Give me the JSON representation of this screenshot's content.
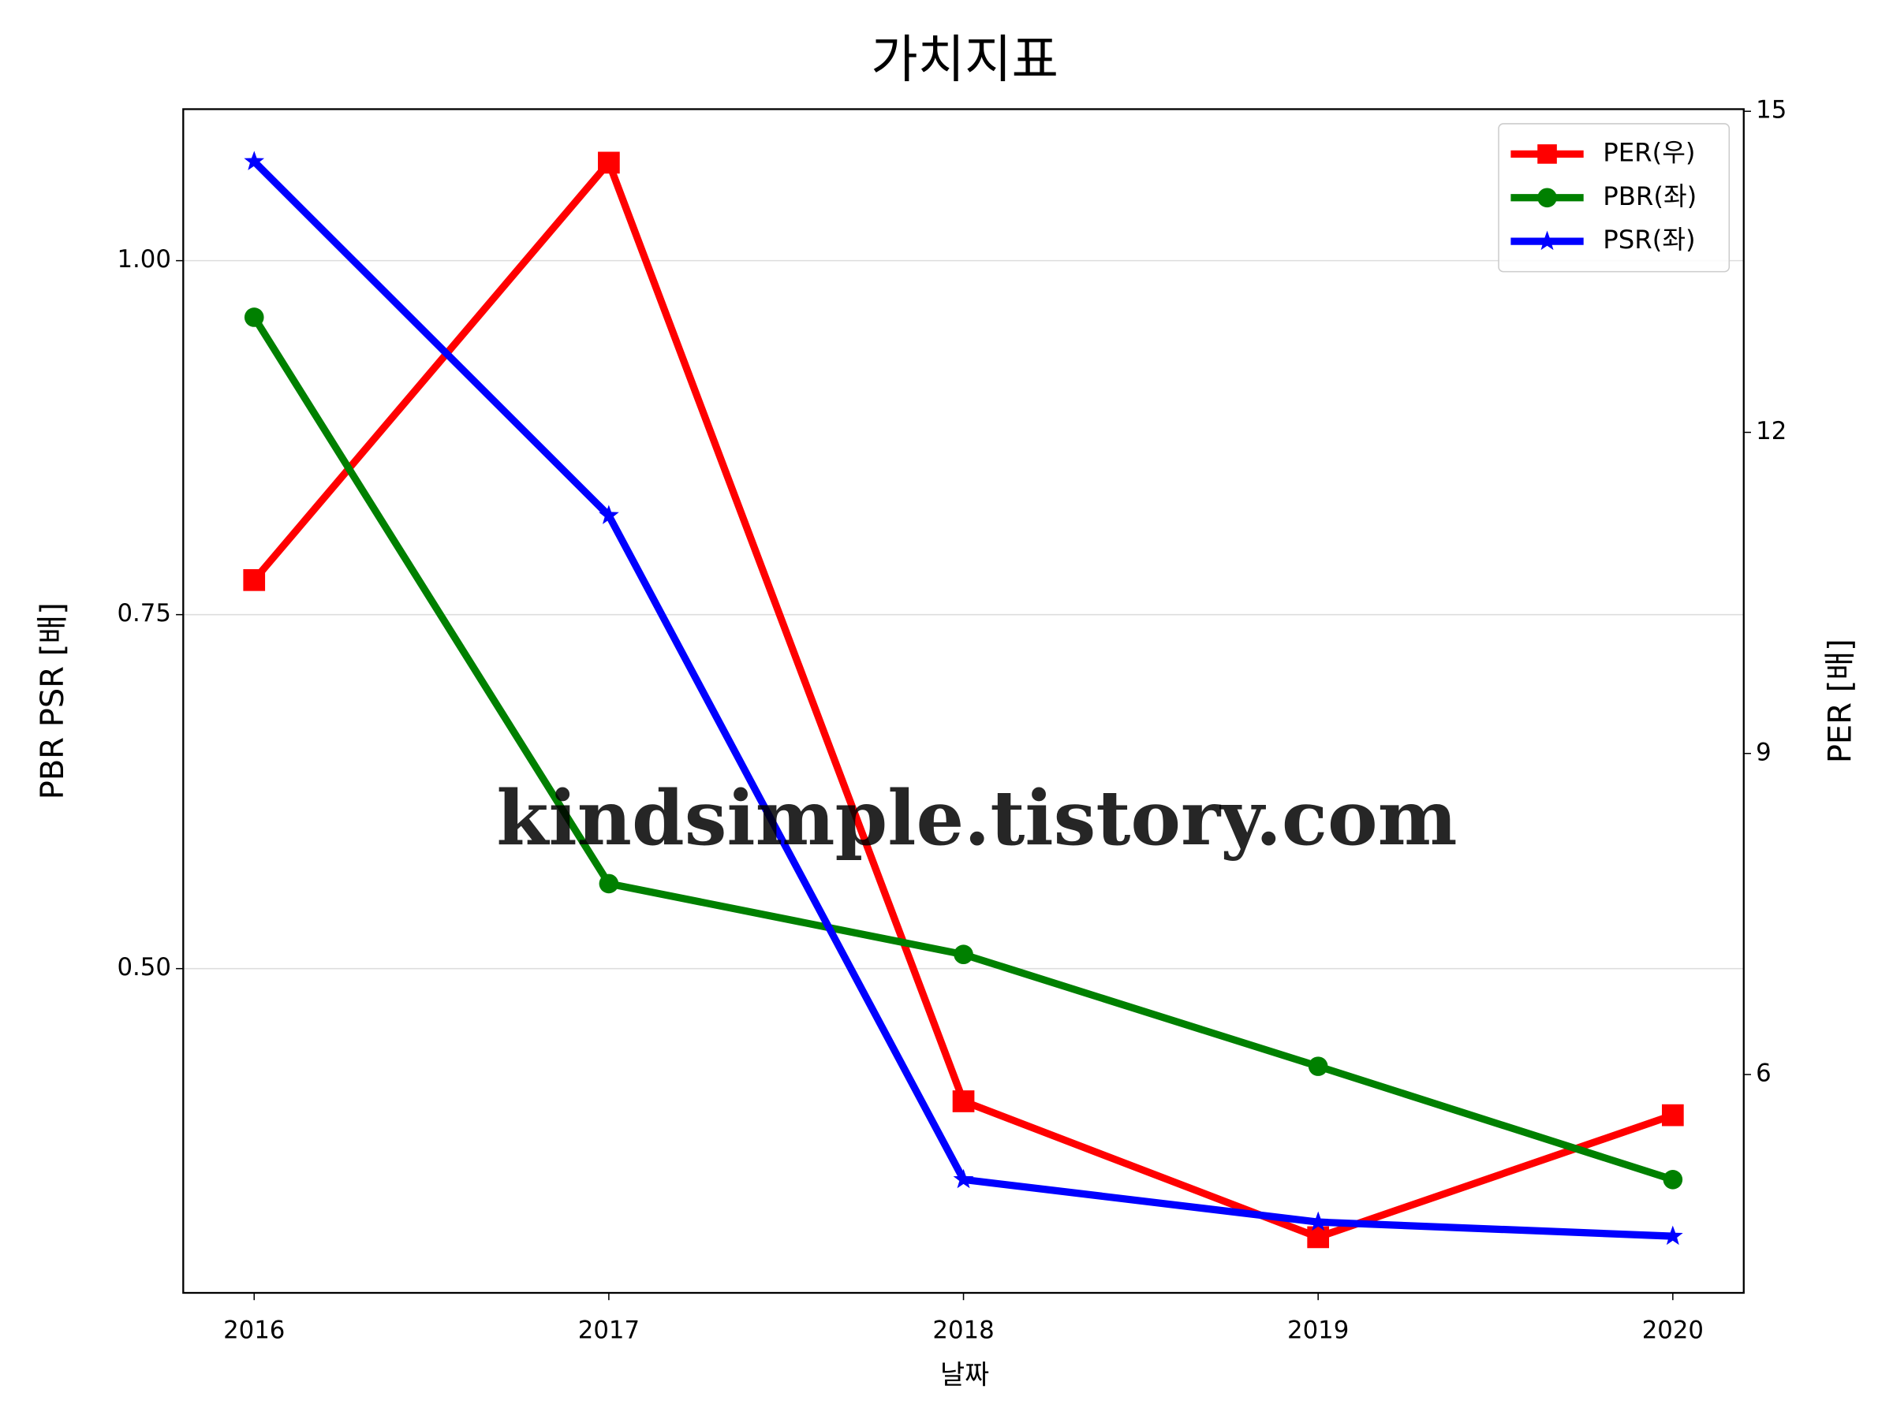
{
  "chart_data": {
    "type": "line",
    "title": "가치지표",
    "xlabel": "날짜",
    "ylabel": "PBR PSR [배]",
    "y2label": "PER [배]",
    "watermark": "kindsimple.tistory.com",
    "x": [
      2016,
      2017,
      2018,
      2019,
      2020
    ],
    "xlim": [
      2015.8,
      2020.2
    ],
    "xticks": [
      2016,
      2017,
      2018,
      2019,
      2020
    ],
    "ylim": [
      0.271,
      1.107
    ],
    "yticks": [
      {
        "value": 0.5,
        "label": "0.50"
      },
      {
        "value": 0.75,
        "label": "0.75"
      },
      {
        "value": 1.0,
        "label": "1.00"
      }
    ],
    "y2lim": [
      3.96,
      15.02
    ],
    "y2ticks": [
      6,
      9,
      12,
      15
    ],
    "grid": true,
    "legend": "upper right",
    "ylabel_color": "#008000",
    "y2label_color": "#ff0000",
    "series": [
      {
        "name": "PER(우)",
        "color": "#ff0000",
        "marker": "square",
        "axis": "y2",
        "values": [
          10.62,
          14.52,
          5.75,
          4.48,
          5.62
        ]
      },
      {
        "name": "PBR(좌)",
        "color": "#008000",
        "marker": "circle",
        "values": [
          0.96,
          0.56,
          0.51,
          0.431,
          0.351
        ]
      },
      {
        "name": "PSR(좌)",
        "color": "#0000ff",
        "marker": "star",
        "values": [
          1.07,
          0.82,
          0.351,
          0.321,
          0.311
        ]
      }
    ]
  }
}
